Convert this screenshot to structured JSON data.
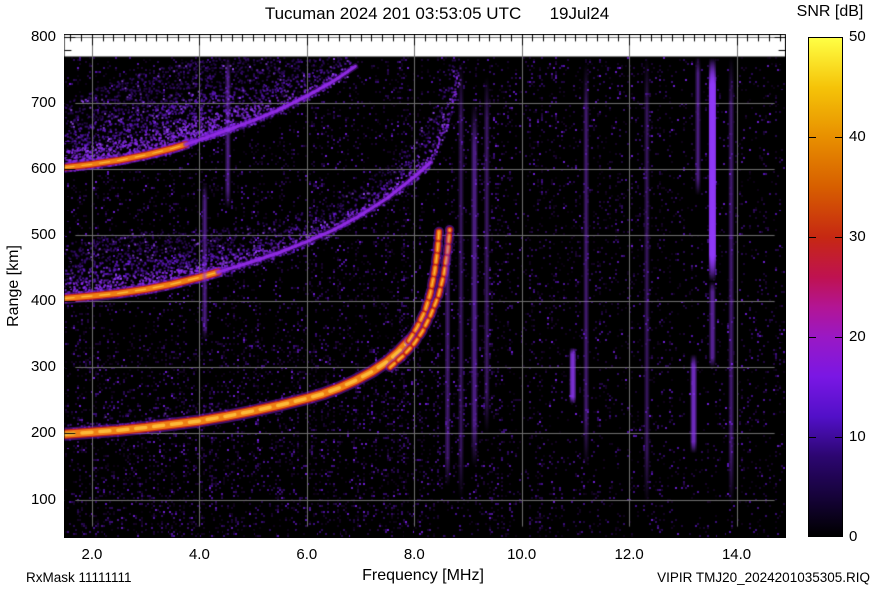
{
  "header": {
    "title": "Tucuman 2024 201 03:53:05 UTC",
    "date": "19Jul24",
    "colorbar_title": "SNR [dB]"
  },
  "footer": {
    "rx_mask": "RxMask 11111111",
    "xlabel": "Frequency [MHz]",
    "file_id": "VIPIR  TMJ20_2024201035305.RIQ"
  },
  "axes": {
    "ylabel": "Range [km]",
    "y_tick_labels": [
      "800",
      "700",
      "600",
      "500",
      "400",
      "300",
      "200",
      "100"
    ],
    "x_tick_labels": [
      "2.0",
      "4.0",
      "6.0",
      "8.0",
      "10.0",
      "12.0",
      "14.0"
    ],
    "colorbar_tick_labels": [
      "50",
      "40",
      "30",
      "20",
      "10",
      "0"
    ]
  },
  "chart_data": {
    "type": "heatmap",
    "title": "Tucuman 2024 201 03:53:05 UTC  19Jul24",
    "xlabel": "Frequency [MHz]",
    "ylabel": "Range [km]",
    "x_range": [
      1.48,
      14.92
    ],
    "y_range": [
      42,
      804
    ],
    "x_ticks": [
      2,
      4,
      6,
      8,
      10,
      12,
      14
    ],
    "y_ticks": [
      100,
      200,
      300,
      400,
      500,
      600,
      700,
      800
    ],
    "x_minor_step": 0.2,
    "y_minor_step": 20,
    "grid": true,
    "grid_color": "#6f6f6f",
    "frame_color": "#000000",
    "background_color": "#ffffff",
    "data_background": "#000000",
    "data_top_km": 770,
    "colorbar": {
      "label": "SNR [dB]",
      "range": [
        0,
        50
      ],
      "ticks": [
        0,
        10,
        20,
        30,
        40,
        50
      ],
      "stops": [
        [
          0,
          "#000000"
        ],
        [
          0.08,
          "#16033a"
        ],
        [
          0.16,
          "#2c0670"
        ],
        [
          0.24,
          "#5210c8"
        ],
        [
          0.32,
          "#7a17e4"
        ],
        [
          0.4,
          "#9a18c4"
        ],
        [
          0.46,
          "#b31594"
        ],
        [
          0.52,
          "#bf1250"
        ],
        [
          0.6,
          "#c62812"
        ],
        [
          0.7,
          "#d75e00"
        ],
        [
          0.8,
          "#e88f00"
        ],
        [
          0.9,
          "#f5c308"
        ],
        [
          1,
          "#ffff44"
        ]
      ]
    },
    "traces": [
      {
        "name": "F-trace-1st-hop",
        "mode": "O",
        "style": "bright",
        "width": 7,
        "points": [
          [
            1.48,
            199
          ],
          [
            2,
            202
          ],
          [
            2.5,
            205
          ],
          [
            3,
            209
          ],
          [
            3.5,
            214
          ],
          [
            4,
            219
          ],
          [
            4.5,
            226
          ],
          [
            5,
            234
          ],
          [
            5.5,
            243
          ],
          [
            6,
            253
          ],
          [
            6.3,
            260
          ],
          [
            6.6,
            269
          ],
          [
            6.9,
            280
          ],
          [
            7.2,
            293
          ],
          [
            7.5,
            309
          ],
          [
            7.7,
            323
          ],
          [
            7.9,
            340
          ]
        ]
      },
      {
        "name": "F-trace-1st-hop-cusp",
        "mode": "O",
        "style": "bright",
        "width": 4,
        "dash": [
          7,
          5
        ],
        "points": [
          [
            7.9,
            340
          ],
          [
            8.05,
            360
          ],
          [
            8.2,
            385
          ],
          [
            8.3,
            412
          ],
          [
            8.38,
            445
          ],
          [
            8.43,
            475
          ],
          [
            8.46,
            505
          ]
        ]
      },
      {
        "name": "F-trace-X-mode",
        "mode": "X",
        "style": "bright",
        "width": 3.5,
        "dash": [
          6,
          5
        ],
        "points": [
          [
            7.55,
            300
          ],
          [
            7.8,
            318
          ],
          [
            8.0,
            336
          ],
          [
            8.15,
            354
          ],
          [
            8.3,
            378
          ],
          [
            8.45,
            408
          ],
          [
            8.55,
            440
          ],
          [
            8.62,
            475
          ],
          [
            8.66,
            508
          ]
        ]
      },
      {
        "name": "second-hop-bright",
        "mode": "O",
        "style": "bright",
        "width": 5,
        "points": [
          [
            1.48,
            404
          ],
          [
            2,
            408
          ],
          [
            2.5,
            412
          ],
          [
            3,
            418
          ],
          [
            3.5,
            426
          ],
          [
            4,
            436
          ],
          [
            4.35,
            444
          ]
        ]
      },
      {
        "name": "second-hop-faint",
        "mode": "O",
        "style": "purple",
        "width": 3,
        "points": [
          [
            4.35,
            444
          ],
          [
            5,
            460
          ],
          [
            5.5,
            474
          ],
          [
            6,
            490
          ],
          [
            6.5,
            508
          ],
          [
            7,
            530
          ],
          [
            7.5,
            556
          ],
          [
            8,
            588
          ],
          [
            8.3,
            610
          ]
        ]
      },
      {
        "name": "third-hop-bright",
        "mode": "O",
        "style": "bright",
        "width": 4.5,
        "points": [
          [
            1.48,
            602
          ],
          [
            2,
            607
          ],
          [
            2.5,
            613
          ],
          [
            3,
            621
          ],
          [
            3.5,
            631
          ],
          [
            3.75,
            637
          ]
        ]
      },
      {
        "name": "third-hop-faint",
        "mode": "O",
        "style": "purple",
        "width": 3,
        "points": [
          [
            3.75,
            637
          ],
          [
            4.5,
            658
          ],
          [
            5,
            673
          ],
          [
            5.5,
            690
          ],
          [
            6,
            710
          ],
          [
            6.5,
            733
          ],
          [
            6.9,
            755
          ]
        ]
      }
    ],
    "haze": [
      {
        "name": "spread-above-1st-hop",
        "density": 0.1,
        "boost_below_f": 4.5,
        "points": [
          [
            1.48,
            204,
            22
          ],
          [
            2,
            207,
            24
          ],
          [
            3,
            214,
            24
          ],
          [
            4,
            224,
            22
          ],
          [
            5,
            239,
            18
          ]
        ]
      },
      {
        "name": "spread-above-2nd-hop",
        "density": 0.4,
        "boost_below_f": 4.5,
        "points": [
          [
            1.48,
            408,
            80
          ],
          [
            2,
            412,
            85
          ],
          [
            2.5,
            416,
            88
          ],
          [
            3,
            421,
            85
          ],
          [
            3.5,
            429,
            80
          ],
          [
            4,
            438,
            72
          ],
          [
            4.5,
            450,
            62
          ],
          [
            5,
            462,
            55
          ],
          [
            5.5,
            476,
            50
          ],
          [
            6,
            492,
            48
          ],
          [
            6.5,
            510,
            45
          ],
          [
            7,
            532,
            45
          ],
          [
            7.5,
            558,
            50
          ],
          [
            8,
            590,
            62
          ],
          [
            8.3,
            612,
            72
          ],
          [
            8.6,
            670,
            82
          ],
          [
            8.85,
            745,
            60
          ]
        ]
      },
      {
        "name": "spread-above-3rd-hop",
        "density": 0.4,
        "boost_below_f": 4.3,
        "points": [
          [
            1.48,
            605,
            95
          ],
          [
            2,
            610,
            110
          ],
          [
            2.5,
            616,
            120
          ],
          [
            3,
            624,
            125
          ],
          [
            3.5,
            633,
            125
          ],
          [
            4,
            650,
            120
          ],
          [
            4.5,
            662,
            110
          ],
          [
            5,
            676,
            95
          ],
          [
            5.5,
            692,
            80
          ],
          [
            6,
            712,
            62
          ],
          [
            6.5,
            735,
            40
          ],
          [
            6.9,
            757,
            20
          ]
        ]
      }
    ],
    "rfi_streaks": [
      {
        "f": 4.1,
        "range": [
          340,
          580
        ],
        "w": 2,
        "a": 0.3
      },
      {
        "f": 4.53,
        "range": [
          540,
          770
        ],
        "w": 2,
        "a": 0.3
      },
      {
        "f": 8.62,
        "range": [
          120,
          520
        ],
        "w": 2,
        "a": 0.25
      },
      {
        "f": 8.87,
        "range": [
          100,
          760
        ],
        "w": 2,
        "a": 0.2
      },
      {
        "f": 9.12,
        "range": [
          150,
          700
        ],
        "w": 3,
        "a": 0.3
      },
      {
        "f": 9.35,
        "range": [
          200,
          740
        ],
        "w": 2,
        "a": 0.22
      },
      {
        "f": 10.95,
        "range": [
          245,
          330
        ],
        "w": 3,
        "a": 0.6
      },
      {
        "f": 11.2,
        "range": [
          150,
          760
        ],
        "w": 2,
        "a": 0.25
      },
      {
        "f": 12.33,
        "range": [
          90,
          770
        ],
        "w": 2,
        "a": 0.2
      },
      {
        "f": 13.2,
        "range": [
          170,
          320
        ],
        "w": 3,
        "a": 0.5
      },
      {
        "f": 13.28,
        "range": [
          560,
          770
        ],
        "w": 2,
        "a": 0.3
      },
      {
        "f": 13.55,
        "range": [
          430,
          768
        ],
        "w": 4,
        "a": 0.95
      },
      {
        "f": 13.55,
        "range": [
          300,
          430
        ],
        "w": 3,
        "a": 0.35
      },
      {
        "f": 13.9,
        "range": [
          90,
          770
        ],
        "w": 2,
        "a": 0.25
      }
    ],
    "noise": {
      "palette": [
        "#140322",
        "#1d0535",
        "#26074a",
        "#300a62",
        "#3a0d7a",
        "#471094",
        "#5513b2",
        "#6f1fd6"
      ],
      "streak_color": "#9038f8",
      "base_density": 0.1
    },
    "trace_colors": {
      "fringe": "rgba(124,26,214,0.5)",
      "red": "rgba(198,35,20,0.95)",
      "core": "#ee7e14",
      "hot": "rgba(255,196,64,0.85)",
      "purple_outer": "rgba(112,24,196,0.45)",
      "purple_core": "rgba(148,44,232,0.9)"
    }
  }
}
